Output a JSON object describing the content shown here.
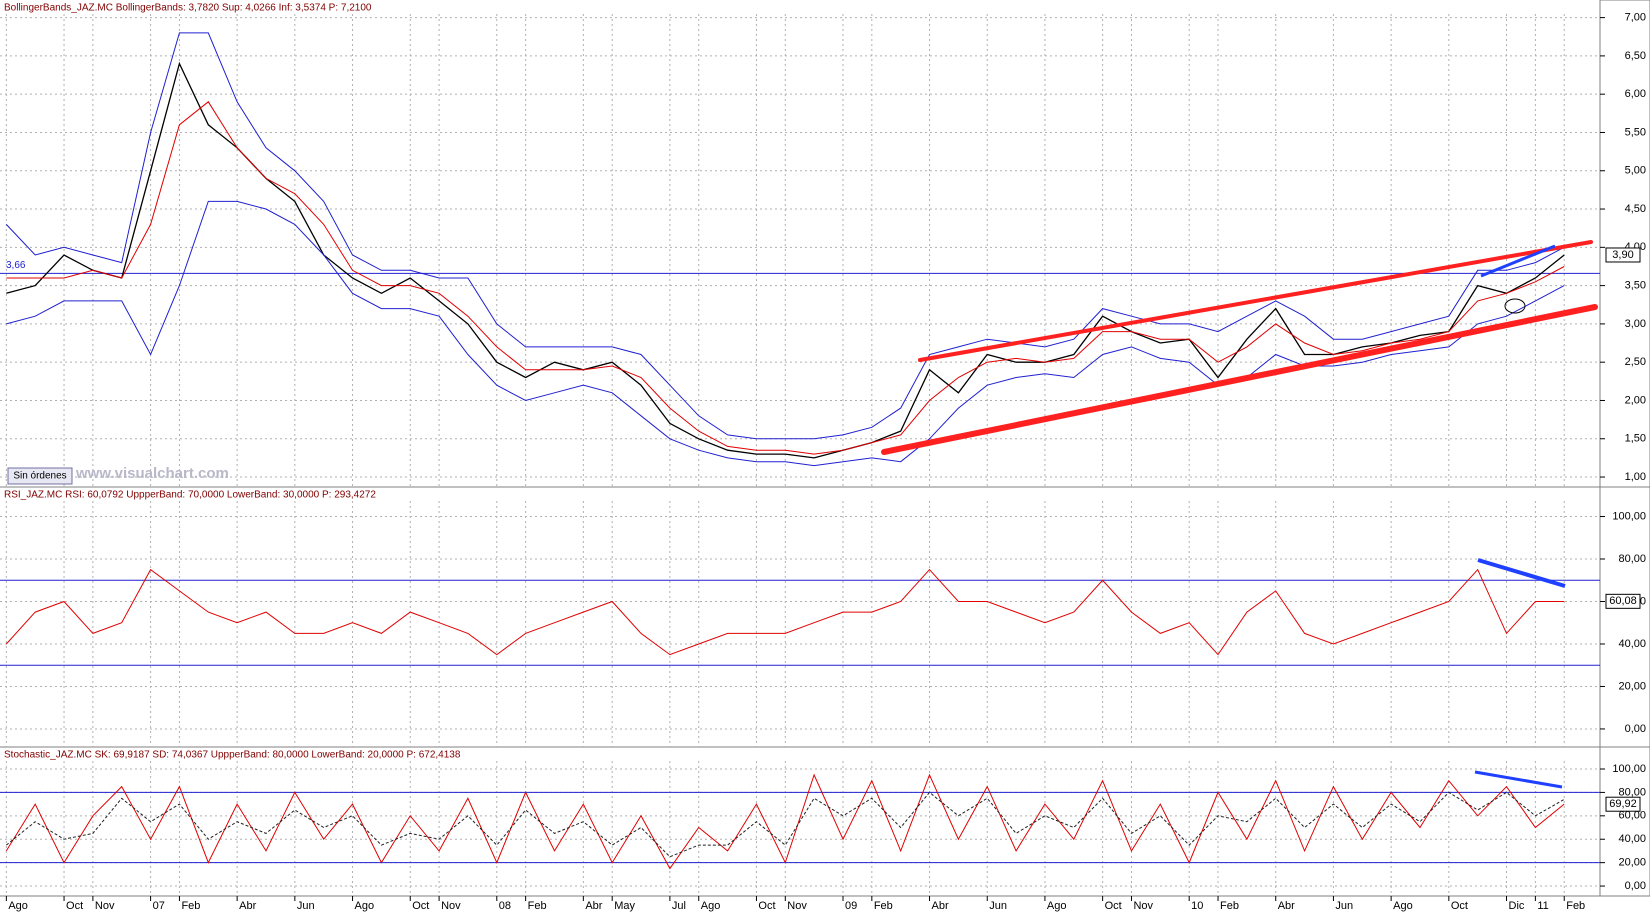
{
  "chart_data": [
    {
      "type": "line",
      "title": "BollingerBands_JAZ.MC  BollingerBands: 3,7820  Sup: 4,0266  Inf: 3,5374  P: 7,2100",
      "x": [
        0,
        1,
        2,
        3,
        4,
        5,
        6,
        7,
        8,
        9,
        10,
        11,
        12,
        13,
        14,
        15,
        16,
        17,
        18,
        19,
        20,
        21,
        22,
        23,
        24,
        25,
        26,
        27,
        28,
        29,
        30,
        31,
        32,
        33,
        34,
        35,
        36,
        37,
        38,
        39,
        40,
        41,
        42,
        43,
        44,
        45,
        46,
        47,
        48,
        49,
        50,
        51,
        52,
        53,
        54
      ],
      "xlim": [
        -0.22,
        55.24
      ],
      "ylim": [
        0.87,
        7.23
      ],
      "yticks": [
        {
          "value": 1,
          "label": "1,00"
        },
        {
          "value": 1.5,
          "label": "1,50"
        },
        {
          "value": 2,
          "label": "2,00"
        },
        {
          "value": 2.5,
          "label": "2,50"
        },
        {
          "value": 3,
          "label": "3,00"
        },
        {
          "value": 3.5,
          "label": "3,50"
        },
        {
          "value": 4,
          "label": "4,00"
        },
        {
          "value": 4.5,
          "label": "4,50"
        },
        {
          "value": 5,
          "label": "5,00"
        },
        {
          "value": 5.5,
          "label": "5,50"
        },
        {
          "value": 6,
          "label": "6,00"
        },
        {
          "value": 6.5,
          "label": "6,50"
        },
        {
          "value": 7,
          "label": "7,00"
        }
      ],
      "grid": true,
      "reference_lines": [
        {
          "value": 3.66,
          "label": "3,66",
          "color": "#2020d0"
        }
      ],
      "last_value": {
        "value": 3.9,
        "label": "3,90"
      },
      "series": [
        {
          "color": "#000000",
          "width": 1.3,
          "values": [
            3.4,
            3.5,
            3.9,
            3.7,
            3.6,
            5.0,
            6.4,
            5.6,
            5.3,
            4.9,
            4.6,
            3.9,
            3.6,
            3.4,
            3.6,
            3.3,
            3.0,
            2.5,
            2.3,
            2.5,
            2.4,
            2.5,
            2.2,
            1.7,
            1.5,
            1.35,
            1.3,
            1.3,
            1.25,
            1.35,
            1.45,
            1.6,
            2.4,
            2.1,
            2.6,
            2.5,
            2.5,
            2.6,
            3.1,
            2.9,
            2.75,
            2.8,
            2.3,
            2.8,
            3.2,
            2.6,
            2.6,
            2.7,
            2.75,
            2.85,
            2.9,
            3.5,
            3.4,
            3.6,
            3.9
          ]
        },
        {
          "color": "#2020d0",
          "width": 1,
          "values": [
            4.3,
            3.9,
            4.0,
            3.9,
            3.8,
            5.5,
            6.8,
            6.8,
            5.9,
            5.3,
            5.0,
            4.6,
            3.9,
            3.7,
            3.7,
            3.6,
            3.6,
            3.0,
            2.7,
            2.7,
            2.7,
            2.7,
            2.6,
            2.2,
            1.8,
            1.55,
            1.5,
            1.5,
            1.5,
            1.55,
            1.65,
            1.9,
            2.6,
            2.7,
            2.8,
            2.75,
            2.7,
            2.8,
            3.2,
            3.1,
            3.0,
            3.0,
            2.9,
            3.1,
            3.3,
            3.1,
            2.8,
            2.8,
            2.9,
            3.0,
            3.1,
            3.7,
            3.7,
            3.8,
            4.0
          ]
        },
        {
          "color": "#2020d0",
          "width": 1,
          "values": [
            3.0,
            3.1,
            3.3,
            3.3,
            3.3,
            2.6,
            3.5,
            4.6,
            4.6,
            4.5,
            4.3,
            3.9,
            3.4,
            3.2,
            3.2,
            3.1,
            2.6,
            2.2,
            2.0,
            2.1,
            2.2,
            2.1,
            1.8,
            1.5,
            1.35,
            1.25,
            1.2,
            1.2,
            1.15,
            1.2,
            1.25,
            1.2,
            1.5,
            1.9,
            2.2,
            2.3,
            2.35,
            2.3,
            2.6,
            2.7,
            2.55,
            2.5,
            2.2,
            2.3,
            2.6,
            2.45,
            2.45,
            2.5,
            2.6,
            2.65,
            2.7,
            3.0,
            3.1,
            3.3,
            3.5
          ]
        },
        {
          "color": "#e00000",
          "width": 1,
          "values": [
            3.6,
            3.6,
            3.6,
            3.7,
            3.6,
            4.3,
            5.6,
            5.9,
            5.3,
            4.9,
            4.7,
            4.3,
            3.7,
            3.5,
            3.5,
            3.4,
            3.1,
            2.7,
            2.4,
            2.4,
            2.4,
            2.45,
            2.3,
            1.9,
            1.6,
            1.4,
            1.35,
            1.35,
            1.3,
            1.35,
            1.45,
            1.55,
            2.0,
            2.3,
            2.5,
            2.55,
            2.5,
            2.55,
            2.9,
            2.9,
            2.8,
            2.8,
            2.5,
            2.7,
            3.0,
            2.75,
            2.6,
            2.65,
            2.75,
            2.8,
            2.9,
            3.3,
            3.4,
            3.55,
            3.75
          ]
        }
      ]
    },
    {
      "type": "line",
      "title": "RSI_JAZ.MC  RSI: 60,0792  UppperBand: 70,0000  LowerBand: 30,0000  P: 293,4272",
      "x": [
        0,
        1,
        2,
        3,
        4,
        5,
        6,
        7,
        8,
        9,
        10,
        11,
        12,
        13,
        14,
        15,
        16,
        17,
        18,
        19,
        20,
        21,
        22,
        23,
        24,
        25,
        26,
        27,
        28,
        29,
        30,
        31,
        32,
        33,
        34,
        35,
        36,
        37,
        38,
        39,
        40,
        41,
        42,
        43,
        44,
        45,
        46,
        47,
        48,
        49,
        50,
        51,
        52,
        53,
        54
      ],
      "xlim": [
        -0.22,
        55.24
      ],
      "ylim": [
        -8.5,
        113.9
      ],
      "yticks": [
        {
          "value": 0,
          "label": "0,00"
        },
        {
          "value": 20,
          "label": "20,00"
        },
        {
          "value": 40,
          "label": "40,00"
        },
        {
          "value": 60,
          "label": "60,00"
        },
        {
          "value": 80,
          "label": "80,00"
        },
        {
          "value": 100,
          "label": "100,00"
        }
      ],
      "grid": true,
      "reference_lines": [
        {
          "value": 70,
          "color": "#2020d0"
        },
        {
          "value": 30,
          "color": "#2020d0"
        }
      ],
      "last_value": {
        "value": 60.08,
        "label": "60,08"
      },
      "series": [
        {
          "color": "#e00000",
          "width": 1,
          "values": [
            40,
            55,
            60,
            45,
            50,
            75,
            65,
            55,
            50,
            55,
            45,
            45,
            50,
            45,
            55,
            50,
            45,
            35,
            45,
            50,
            55,
            60,
            45,
            35,
            40,
            45,
            45,
            45,
            50,
            55,
            55,
            60,
            75,
            60,
            60,
            55,
            50,
            55,
            70,
            55,
            45,
            50,
            35,
            55,
            65,
            45,
            40,
            45,
            50,
            55,
            60,
            75,
            45,
            60,
            60
          ]
        }
      ]
    },
    {
      "type": "line",
      "title": "Stochastic_JAZ.MC  SK: 69,9187  SD: 74,0367  UppperBand: 80,0000  LowerBand: 20,0000  P: 672,4138",
      "x": [
        0,
        1,
        2,
        3,
        4,
        5,
        6,
        7,
        8,
        9,
        10,
        11,
        12,
        13,
        14,
        15,
        16,
        17,
        18,
        19,
        20,
        21,
        22,
        23,
        24,
        25,
        26,
        27,
        28,
        29,
        30,
        31,
        32,
        33,
        34,
        35,
        36,
        37,
        38,
        39,
        40,
        41,
        42,
        43,
        44,
        45,
        46,
        47,
        48,
        49,
        50,
        51,
        52,
        53,
        54
      ],
      "xlim": [
        -0.22,
        55.24
      ],
      "ylim": [
        -8.5,
        118.8
      ],
      "yticks": [
        {
          "value": 0,
          "label": "0,00"
        },
        {
          "value": 20,
          "label": "20,00"
        },
        {
          "value": 40,
          "label": "40,00"
        },
        {
          "value": 60,
          "label": "60,00"
        },
        {
          "value": 80,
          "label": "80,00"
        },
        {
          "value": 100,
          "label": "100,00"
        }
      ],
      "xticks": [
        {
          "value": 0,
          "label": "Ago"
        },
        {
          "value": 2,
          "label": "Oct"
        },
        {
          "value": 3,
          "label": "Nov"
        },
        {
          "value": 5,
          "label": "07"
        },
        {
          "value": 6,
          "label": "Feb"
        },
        {
          "value": 8,
          "label": "Abr"
        },
        {
          "value": 10,
          "label": "Jun"
        },
        {
          "value": 12,
          "label": "Ago"
        },
        {
          "value": 14,
          "label": "Oct"
        },
        {
          "value": 15,
          "label": "Nov"
        },
        {
          "value": 17,
          "label": "08"
        },
        {
          "value": 18,
          "label": "Feb"
        },
        {
          "value": 20,
          "label": "Abr"
        },
        {
          "value": 21,
          "label": "May"
        },
        {
          "value": 23,
          "label": "Jul"
        },
        {
          "value": 24,
          "label": "Ago"
        },
        {
          "value": 26,
          "label": "Oct"
        },
        {
          "value": 27,
          "label": "Nov"
        },
        {
          "value": 29,
          "label": "09"
        },
        {
          "value": 30,
          "label": "Feb"
        },
        {
          "value": 32,
          "label": "Abr"
        },
        {
          "value": 34,
          "label": "Jun"
        },
        {
          "value": 36,
          "label": "Ago"
        },
        {
          "value": 38,
          "label": "Oct"
        },
        {
          "value": 39,
          "label": "Nov"
        },
        {
          "value": 41,
          "label": "10"
        },
        {
          "value": 42,
          "label": "Feb"
        },
        {
          "value": 44,
          "label": "Abr"
        },
        {
          "value": 46,
          "label": "Jun"
        },
        {
          "value": 48,
          "label": "Ago"
        },
        {
          "value": 50,
          "label": "Oct"
        },
        {
          "value": 52,
          "label": "Dic"
        },
        {
          "value": 53,
          "label": "11"
        },
        {
          "value": 54,
          "label": "Feb"
        }
      ],
      "grid": true,
      "reference_lines": [
        {
          "value": 80,
          "color": "#2020d0"
        },
        {
          "value": 20,
          "color": "#2020d0"
        }
      ],
      "last_value": {
        "value": 69.92,
        "label": "69,92"
      },
      "series": [
        {
          "color": "#e00000",
          "width": 1,
          "values": [
            30,
            70,
            20,
            60,
            85,
            40,
            85,
            20,
            70,
            30,
            80,
            40,
            70,
            20,
            60,
            30,
            75,
            20,
            80,
            30,
            70,
            20,
            60,
            15,
            50,
            30,
            70,
            20,
            95,
            40,
            90,
            30,
            95,
            40,
            85,
            30,
            70,
            40,
            90,
            30,
            70,
            20,
            80,
            40,
            90,
            30,
            85,
            40,
            80,
            50,
            90,
            60,
            85,
            50,
            70
          ]
        },
        {
          "color": "#202020",
          "width": 1,
          "dashed": true,
          "values": [
            35,
            55,
            40,
            45,
            75,
            55,
            70,
            40,
            55,
            45,
            65,
            50,
            60,
            35,
            45,
            40,
            60,
            35,
            65,
            45,
            55,
            35,
            50,
            25,
            35,
            35,
            55,
            35,
            75,
            60,
            75,
            50,
            80,
            60,
            75,
            45,
            60,
            50,
            75,
            45,
            60,
            35,
            60,
            55,
            75,
            50,
            70,
            50,
            70,
            55,
            80,
            65,
            80,
            60,
            74
          ]
        }
      ]
    }
  ],
  "toolbar": {
    "button": "Sin órdenes"
  },
  "watermark": "www.visualchart.com"
}
